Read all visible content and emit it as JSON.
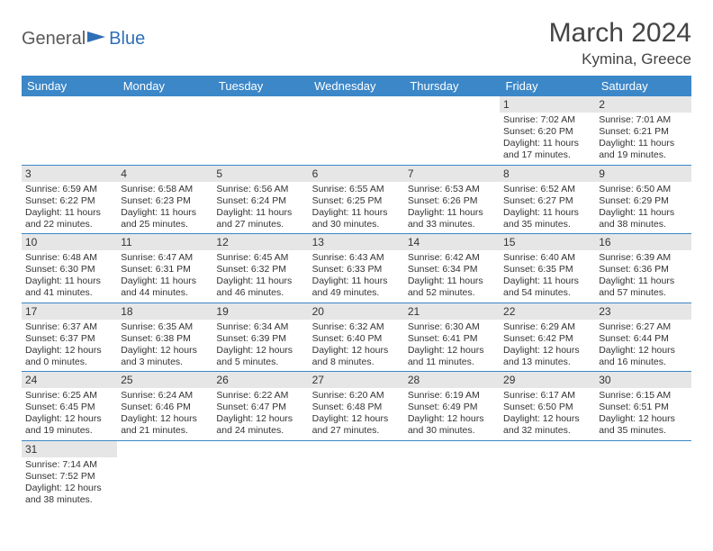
{
  "logo": {
    "general": "General",
    "blue": "Blue"
  },
  "title": "March 2024",
  "location": "Kymina, Greece",
  "colors": {
    "header_bg": "#3b87c8",
    "header_text": "#ffffff",
    "daynum_bg": "#e6e6e6",
    "border": "#3b87c8",
    "logo_gray": "#5a5a5a",
    "logo_blue": "#2f6fb5"
  },
  "weekdays": [
    "Sunday",
    "Monday",
    "Tuesday",
    "Wednesday",
    "Thursday",
    "Friday",
    "Saturday"
  ],
  "weeks": [
    [
      null,
      null,
      null,
      null,
      null,
      {
        "n": "1",
        "sunrise": "Sunrise: 7:02 AM",
        "sunset": "Sunset: 6:20 PM",
        "daylight": "Daylight: 11 hours and 17 minutes."
      },
      {
        "n": "2",
        "sunrise": "Sunrise: 7:01 AM",
        "sunset": "Sunset: 6:21 PM",
        "daylight": "Daylight: 11 hours and 19 minutes."
      }
    ],
    [
      {
        "n": "3",
        "sunrise": "Sunrise: 6:59 AM",
        "sunset": "Sunset: 6:22 PM",
        "daylight": "Daylight: 11 hours and 22 minutes."
      },
      {
        "n": "4",
        "sunrise": "Sunrise: 6:58 AM",
        "sunset": "Sunset: 6:23 PM",
        "daylight": "Daylight: 11 hours and 25 minutes."
      },
      {
        "n": "5",
        "sunrise": "Sunrise: 6:56 AM",
        "sunset": "Sunset: 6:24 PM",
        "daylight": "Daylight: 11 hours and 27 minutes."
      },
      {
        "n": "6",
        "sunrise": "Sunrise: 6:55 AM",
        "sunset": "Sunset: 6:25 PM",
        "daylight": "Daylight: 11 hours and 30 minutes."
      },
      {
        "n": "7",
        "sunrise": "Sunrise: 6:53 AM",
        "sunset": "Sunset: 6:26 PM",
        "daylight": "Daylight: 11 hours and 33 minutes."
      },
      {
        "n": "8",
        "sunrise": "Sunrise: 6:52 AM",
        "sunset": "Sunset: 6:27 PM",
        "daylight": "Daylight: 11 hours and 35 minutes."
      },
      {
        "n": "9",
        "sunrise": "Sunrise: 6:50 AM",
        "sunset": "Sunset: 6:29 PM",
        "daylight": "Daylight: 11 hours and 38 minutes."
      }
    ],
    [
      {
        "n": "10",
        "sunrise": "Sunrise: 6:48 AM",
        "sunset": "Sunset: 6:30 PM",
        "daylight": "Daylight: 11 hours and 41 minutes."
      },
      {
        "n": "11",
        "sunrise": "Sunrise: 6:47 AM",
        "sunset": "Sunset: 6:31 PM",
        "daylight": "Daylight: 11 hours and 44 minutes."
      },
      {
        "n": "12",
        "sunrise": "Sunrise: 6:45 AM",
        "sunset": "Sunset: 6:32 PM",
        "daylight": "Daylight: 11 hours and 46 minutes."
      },
      {
        "n": "13",
        "sunrise": "Sunrise: 6:43 AM",
        "sunset": "Sunset: 6:33 PM",
        "daylight": "Daylight: 11 hours and 49 minutes."
      },
      {
        "n": "14",
        "sunrise": "Sunrise: 6:42 AM",
        "sunset": "Sunset: 6:34 PM",
        "daylight": "Daylight: 11 hours and 52 minutes."
      },
      {
        "n": "15",
        "sunrise": "Sunrise: 6:40 AM",
        "sunset": "Sunset: 6:35 PM",
        "daylight": "Daylight: 11 hours and 54 minutes."
      },
      {
        "n": "16",
        "sunrise": "Sunrise: 6:39 AM",
        "sunset": "Sunset: 6:36 PM",
        "daylight": "Daylight: 11 hours and 57 minutes."
      }
    ],
    [
      {
        "n": "17",
        "sunrise": "Sunrise: 6:37 AM",
        "sunset": "Sunset: 6:37 PM",
        "daylight": "Daylight: 12 hours and 0 minutes."
      },
      {
        "n": "18",
        "sunrise": "Sunrise: 6:35 AM",
        "sunset": "Sunset: 6:38 PM",
        "daylight": "Daylight: 12 hours and 3 minutes."
      },
      {
        "n": "19",
        "sunrise": "Sunrise: 6:34 AM",
        "sunset": "Sunset: 6:39 PM",
        "daylight": "Daylight: 12 hours and 5 minutes."
      },
      {
        "n": "20",
        "sunrise": "Sunrise: 6:32 AM",
        "sunset": "Sunset: 6:40 PM",
        "daylight": "Daylight: 12 hours and 8 minutes."
      },
      {
        "n": "21",
        "sunrise": "Sunrise: 6:30 AM",
        "sunset": "Sunset: 6:41 PM",
        "daylight": "Daylight: 12 hours and 11 minutes."
      },
      {
        "n": "22",
        "sunrise": "Sunrise: 6:29 AM",
        "sunset": "Sunset: 6:42 PM",
        "daylight": "Daylight: 12 hours and 13 minutes."
      },
      {
        "n": "23",
        "sunrise": "Sunrise: 6:27 AM",
        "sunset": "Sunset: 6:44 PM",
        "daylight": "Daylight: 12 hours and 16 minutes."
      }
    ],
    [
      {
        "n": "24",
        "sunrise": "Sunrise: 6:25 AM",
        "sunset": "Sunset: 6:45 PM",
        "daylight": "Daylight: 12 hours and 19 minutes."
      },
      {
        "n": "25",
        "sunrise": "Sunrise: 6:24 AM",
        "sunset": "Sunset: 6:46 PM",
        "daylight": "Daylight: 12 hours and 21 minutes."
      },
      {
        "n": "26",
        "sunrise": "Sunrise: 6:22 AM",
        "sunset": "Sunset: 6:47 PM",
        "daylight": "Daylight: 12 hours and 24 minutes."
      },
      {
        "n": "27",
        "sunrise": "Sunrise: 6:20 AM",
        "sunset": "Sunset: 6:48 PM",
        "daylight": "Daylight: 12 hours and 27 minutes."
      },
      {
        "n": "28",
        "sunrise": "Sunrise: 6:19 AM",
        "sunset": "Sunset: 6:49 PM",
        "daylight": "Daylight: 12 hours and 30 minutes."
      },
      {
        "n": "29",
        "sunrise": "Sunrise: 6:17 AM",
        "sunset": "Sunset: 6:50 PM",
        "daylight": "Daylight: 12 hours and 32 minutes."
      },
      {
        "n": "30",
        "sunrise": "Sunrise: 6:15 AM",
        "sunset": "Sunset: 6:51 PM",
        "daylight": "Daylight: 12 hours and 35 minutes."
      }
    ],
    [
      {
        "n": "31",
        "sunrise": "Sunrise: 7:14 AM",
        "sunset": "Sunset: 7:52 PM",
        "daylight": "Daylight: 12 hours and 38 minutes."
      },
      null,
      null,
      null,
      null,
      null,
      null
    ]
  ]
}
